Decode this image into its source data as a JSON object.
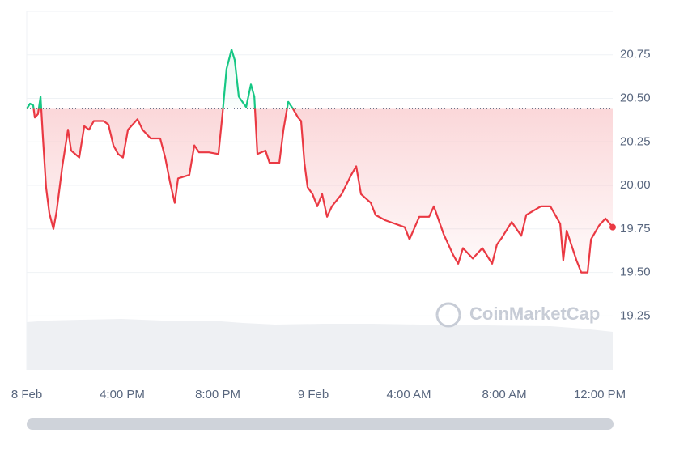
{
  "chart_data": {
    "type": "line",
    "watermark": "CoinMarketCap",
    "xlim": [
      12,
      36.54
    ],
    "xticks": [
      {
        "value": 12,
        "label": "8 Feb"
      },
      {
        "value": 16,
        "label": "4:00 PM"
      },
      {
        "value": 20,
        "label": "8:00 PM"
      },
      {
        "value": 24,
        "label": "9 Feb"
      },
      {
        "value": 28,
        "label": "4:00 AM"
      },
      {
        "value": 32,
        "label": "8:00 AM"
      },
      {
        "value": 36,
        "label": "12:00 PM"
      }
    ],
    "ylim": [
      18.94,
      21.0
    ],
    "yticks": [
      19.25,
      {
        "value": 19.5,
        "label": "19.50"
      },
      19.75,
      {
        "value": 20,
        "label": "20.00"
      },
      20.25,
      {
        "value": 20.5,
        "label": "20.50"
      },
      20.75
    ],
    "grid": true,
    "baseline": 20.44,
    "up_color": "#16c784",
    "down_color": "#ea3943",
    "x": [
      12.0,
      12.14,
      12.27,
      12.34,
      12.47,
      12.58,
      12.68,
      12.81,
      12.95,
      13.12,
      13.25,
      13.49,
      13.73,
      13.86,
      14.2,
      14.41,
      14.61,
      14.81,
      15.22,
      15.42,
      15.63,
      15.83,
      16.03,
      16.24,
      16.64,
      16.85,
      17.19,
      17.59,
      17.8,
      18.0,
      18.2,
      18.34,
      18.81,
      19.02,
      19.22,
      19.63,
      20.03,
      20.2,
      20.37,
      20.58,
      20.71,
      20.88,
      21.19,
      21.39,
      21.53,
      21.66,
      22.0,
      22.17,
      22.58,
      22.75,
      22.95,
      23.15,
      23.36,
      23.49,
      23.63,
      23.76,
      23.97,
      24.17,
      24.37,
      24.58,
      24.78,
      25.19,
      25.59,
      25.8,
      26.0,
      26.41,
      26.61,
      27.02,
      27.42,
      27.83,
      28.03,
      28.44,
      28.85,
      29.05,
      29.46,
      29.86,
      30.07,
      30.27,
      30.68,
      31.08,
      31.49,
      31.69,
      31.9,
      32.31,
      32.71,
      32.92,
      33.53,
      33.93,
      34.34,
      34.47,
      34.61,
      35.02,
      35.22,
      35.49,
      35.63,
      35.97,
      36.24,
      36.54
    ],
    "values": [
      20.44,
      20.47,
      20.46,
      20.39,
      20.41,
      20.51,
      20.27,
      19.99,
      19.84,
      19.75,
      19.85,
      20.11,
      20.32,
      20.2,
      20.16,
      20.34,
      20.32,
      20.37,
      20.37,
      20.35,
      20.23,
      20.18,
      20.16,
      20.32,
      20.38,
      20.32,
      20.27,
      20.27,
      20.16,
      20.02,
      19.9,
      20.04,
      20.06,
      20.23,
      20.19,
      20.19,
      20.18,
      20.41,
      20.67,
      20.78,
      20.72,
      20.51,
      20.45,
      20.58,
      20.51,
      20.18,
      20.2,
      20.13,
      20.13,
      20.32,
      20.48,
      20.44,
      20.39,
      20.37,
      20.13,
      19.99,
      19.95,
      19.88,
      19.95,
      19.82,
      19.88,
      19.95,
      20.06,
      20.11,
      19.95,
      19.9,
      19.83,
      19.8,
      19.78,
      19.76,
      19.69,
      19.82,
      19.82,
      19.88,
      19.72,
      19.6,
      19.55,
      19.64,
      19.58,
      19.64,
      19.55,
      19.66,
      19.7,
      19.79,
      19.71,
      19.83,
      19.88,
      19.88,
      19.78,
      19.57,
      19.74,
      19.57,
      19.5,
      19.5,
      19.69,
      19.77,
      19.81,
      19.76
    ]
  }
}
